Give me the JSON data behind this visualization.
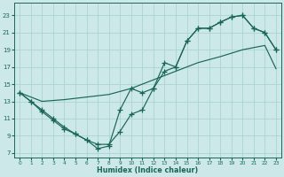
{
  "xlabel": "Humidex (Indice chaleur)",
  "bg_color": "#cce8e8",
  "grid_color": "#aad4d4",
  "line_color": "#1a6655",
  "xlim": [
    -0.5,
    23.5
  ],
  "ylim": [
    6.5,
    24.5
  ],
  "xticks": [
    0,
    1,
    2,
    3,
    4,
    5,
    6,
    7,
    8,
    9,
    10,
    11,
    12,
    13,
    14,
    15,
    16,
    17,
    18,
    19,
    20,
    21,
    22,
    23
  ],
  "yticks": [
    7,
    9,
    11,
    13,
    15,
    17,
    19,
    21,
    23
  ],
  "line1_x": [
    0,
    2,
    4,
    6,
    8,
    10,
    12,
    14,
    16,
    18,
    20,
    22,
    23
  ],
  "line1_y": [
    14.0,
    13.0,
    13.2,
    13.5,
    13.8,
    14.5,
    15.5,
    16.5,
    17.5,
    18.2,
    19.0,
    19.5,
    16.8
  ],
  "line2_x": [
    0,
    1,
    2,
    3,
    4,
    5,
    6,
    7,
    8,
    9,
    10,
    11,
    12,
    13,
    14,
    15,
    16,
    17,
    18,
    19,
    20,
    21,
    22,
    23
  ],
  "line2_y": [
    14.0,
    13.0,
    12.0,
    11.0,
    10.0,
    9.2,
    8.5,
    8.0,
    8.0,
    9.5,
    11.5,
    12.0,
    14.5,
    16.5,
    17.0,
    20.0,
    21.5,
    21.5,
    22.2,
    22.8,
    23.0,
    21.5,
    21.0,
    19.0
  ],
  "line3_x": [
    0,
    1,
    2,
    3,
    4,
    5,
    6,
    7,
    8,
    9,
    10,
    11,
    12,
    13,
    14,
    15,
    16,
    17,
    18,
    19,
    20,
    21,
    22,
    23
  ],
  "line3_y": [
    14.0,
    13.0,
    11.8,
    10.8,
    9.8,
    9.2,
    8.5,
    7.5,
    7.8,
    12.0,
    14.5,
    14.0,
    14.5,
    17.5,
    17.0,
    20.0,
    21.5,
    21.5,
    22.2,
    22.8,
    23.0,
    21.5,
    21.0,
    19.0
  ]
}
